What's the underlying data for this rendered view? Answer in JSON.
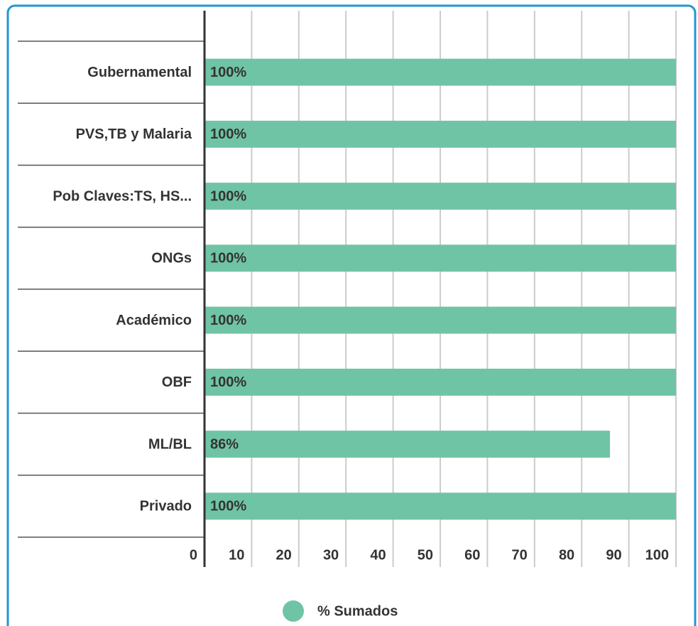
{
  "chart_data": {
    "type": "hbar",
    "categories": [
      "Gubernamental",
      "PVS,TB y Malaria",
      "Pob Claves:TS, HS...",
      "ONGs",
      "Académico",
      "OBF",
      "ML/BL",
      "Privado"
    ],
    "series": [
      {
        "name": "% Sumados",
        "color": "#70c4a6",
        "values": [
          100,
          100,
          100,
          100,
          100,
          100,
          86,
          100
        ],
        "value_labels": [
          "100%",
          "100%",
          "100%",
          "100%",
          "100%",
          "100%",
          "86%",
          "100%"
        ]
      }
    ],
    "xlim": [
      0,
      100
    ],
    "xticks": [
      0,
      10,
      20,
      30,
      40,
      50,
      60,
      70,
      80,
      90,
      100
    ],
    "grid": true,
    "legend": "bottom"
  }
}
